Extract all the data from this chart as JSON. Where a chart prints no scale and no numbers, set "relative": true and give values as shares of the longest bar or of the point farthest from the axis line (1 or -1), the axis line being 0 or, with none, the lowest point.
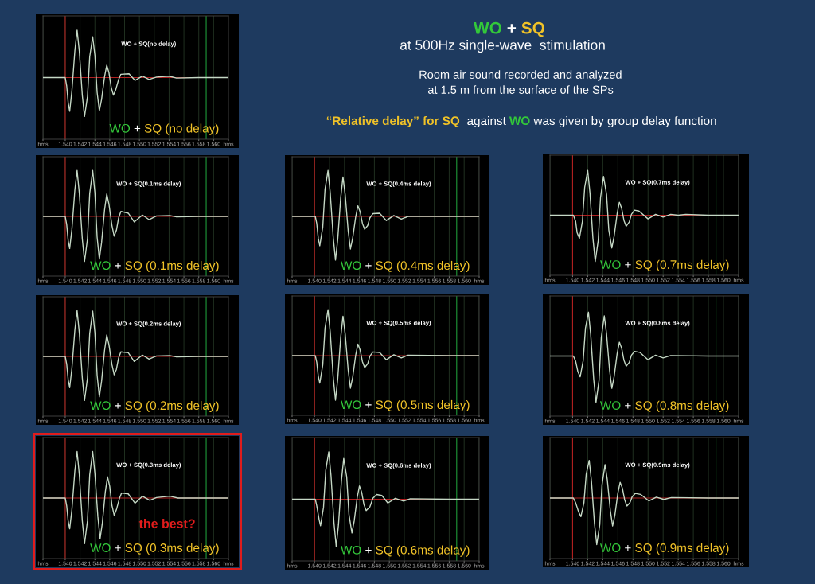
{
  "chart_data": [
    {
      "type": "line",
      "title": "WO + SQ(no delay)",
      "annotations": [
        "WO + SQ (no delay)"
      ],
      "relative": true,
      "grid": "x",
      "tick_labels": "x",
      "xlim": [
        1.537,
        1.562
      ],
      "xticks": [
        {
          "value": 1.537,
          "label": "hms"
        },
        {
          "value": 1.54,
          "label": "1.540"
        },
        {
          "value": 1.542,
          "label": "1.542"
        },
        {
          "value": 1.544,
          "label": "1.544"
        },
        {
          "value": 1.546,
          "label": "1.546"
        },
        {
          "value": 1.548,
          "label": "1.548"
        },
        {
          "value": 1.55,
          "label": "1.550"
        },
        {
          "value": 1.552,
          "label": "1.552"
        },
        {
          "value": 1.554,
          "label": "1.554"
        },
        {
          "value": 1.556,
          "label": "1.556"
        },
        {
          "value": 1.558,
          "label": "1.558"
        },
        {
          "value": 1.56,
          "label": "1.560"
        },
        {
          "value": 1.562,
          "label": "hms"
        }
      ],
      "ref_lines": [
        {
          "axis": "y",
          "value": 0,
          "color": "#b02020"
        },
        {
          "axis": "x",
          "value": 1.54,
          "color": "#b02020"
        },
        {
          "axis": "x",
          "value": 1.559,
          "color": "#1f9a3a"
        }
      ],
      "x": [
        1.537,
        1.54,
        1.5402,
        1.5404,
        1.5406,
        1.5409,
        1.5413,
        1.5416,
        1.5419,
        1.5423,
        1.5426,
        1.543,
        1.5433,
        1.5437,
        1.544,
        1.5443,
        1.5446,
        1.5449,
        1.5453,
        1.5456,
        1.5459,
        1.5462,
        1.5465,
        1.5468,
        1.5472,
        1.5475,
        1.5486,
        1.5494,
        1.5504,
        1.5513,
        1.5523,
        1.554,
        1.555,
        1.558,
        1.562
      ],
      "series": [
        {
          "color": "#c5d8c5",
          "values": [
            0,
            0,
            -0.18,
            -0.53,
            -0.71,
            -0.28,
            0.57,
            1.0,
            0.55,
            -0.37,
            -0.82,
            -0.4,
            0.44,
            0.86,
            0.47,
            -0.31,
            -0.7,
            -0.46,
            0.02,
            0.26,
            0.1,
            -0.21,
            -0.37,
            -0.26,
            -0.04,
            0.07,
            0.08,
            -0.06,
            0.03,
            -0.04,
            0.01,
            0.03,
            -0.01,
            0,
            0
          ]
        }
      ]
    },
    {
      "type": "other",
      "title": "WO + SQ",
      "subtitle": "at 500Hz single-wave  stimulation",
      "annotations": [
        "Room air sound recorded and analyzed",
        "at 1.5 m from the surface of the SPs",
        "“Relative delay” for SQ  against WO was given by group delay function"
      ]
    },
    {
      "type": "line",
      "title": "WO + SQ(0.1ms delay)",
      "annotations": [
        "WO + SQ (0.1ms delay)"
      ],
      "relative": true,
      "grid": "x",
      "tick_labels": "x",
      "xlim": [
        1.537,
        1.562
      ],
      "xticks": [
        {
          "value": 1.537,
          "label": "hms"
        },
        {
          "value": 1.54,
          "label": "1.540"
        },
        {
          "value": 1.542,
          "label": "1.542"
        },
        {
          "value": 1.544,
          "label": "1.544"
        },
        {
          "value": 1.546,
          "label": "1.546"
        },
        {
          "value": 1.548,
          "label": "1.548"
        },
        {
          "value": 1.55,
          "label": "1.550"
        },
        {
          "value": 1.552,
          "label": "1.552"
        },
        {
          "value": 1.554,
          "label": "1.554"
        },
        {
          "value": 1.556,
          "label": "1.556"
        },
        {
          "value": 1.558,
          "label": "1.558"
        },
        {
          "value": 1.56,
          "label": "1.560"
        },
        {
          "value": 1.562,
          "label": "hms"
        }
      ],
      "ref_lines": [
        {
          "axis": "y",
          "value": 0,
          "color": "#b02020"
        },
        {
          "axis": "x",
          "value": 1.54,
          "color": "#b02020"
        },
        {
          "axis": "x",
          "value": 1.559,
          "color": "#1f9a3a"
        }
      ],
      "x": [
        1.537,
        1.54,
        1.5402,
        1.5404,
        1.5406,
        1.5409,
        1.5413,
        1.5416,
        1.5419,
        1.5423,
        1.5426,
        1.543,
        1.5433,
        1.5437,
        1.544,
        1.5443,
        1.5446,
        1.5449,
        1.5453,
        1.5456,
        1.5459,
        1.5463,
        1.5466,
        1.5469,
        1.5472,
        1.5475,
        1.5485,
        1.5493,
        1.5504,
        1.5513,
        1.5523,
        1.5541,
        1.555,
        1.558,
        1.562
      ],
      "series": [
        {
          "color": "#c5d8c5",
          "values": [
            0,
            0,
            -0.18,
            -0.53,
            -0.7,
            -0.28,
            0.58,
            1.0,
            0.5,
            -0.49,
            -0.98,
            -0.49,
            0.5,
            1.0,
            0.52,
            -0.45,
            -0.93,
            -0.57,
            0.14,
            0.49,
            0.26,
            -0.2,
            -0.43,
            -0.3,
            -0.03,
            0.11,
            0.07,
            -0.12,
            0.03,
            -0.07,
            0.01,
            0.02,
            -0.01,
            0,
            0
          ]
        }
      ]
    },
    {
      "type": "line",
      "title": "WO + SQ(0.4ms delay)",
      "annotations": [
        "WO + SQ (0.4ms delay)"
      ],
      "relative": true,
      "grid": "x",
      "tick_labels": "x",
      "xlim": [
        1.537,
        1.562
      ],
      "xticks": [
        {
          "value": 1.537,
          "label": "hms"
        },
        {
          "value": 1.54,
          "label": "1.540"
        },
        {
          "value": 1.542,
          "label": "1.542"
        },
        {
          "value": 1.544,
          "label": "1.544"
        },
        {
          "value": 1.546,
          "label": "1.546"
        },
        {
          "value": 1.548,
          "label": "1.548"
        },
        {
          "value": 1.55,
          "label": "1.550"
        },
        {
          "value": 1.552,
          "label": "1.552"
        },
        {
          "value": 1.554,
          "label": "1.554"
        },
        {
          "value": 1.556,
          "label": "1.556"
        },
        {
          "value": 1.558,
          "label": "1.558"
        },
        {
          "value": 1.56,
          "label": "1.560"
        },
        {
          "value": 1.562,
          "label": "hms"
        }
      ],
      "ref_lines": [
        {
          "axis": "y",
          "value": 0,
          "color": "#b02020"
        },
        {
          "axis": "x",
          "value": 1.54,
          "color": "#b02020"
        },
        {
          "axis": "x",
          "value": 1.559,
          "color": "#1f9a3a"
        }
      ],
      "x": [
        1.537,
        1.5401,
        1.5403,
        1.5405,
        1.5407,
        1.5411,
        1.5414,
        1.5418,
        1.5421,
        1.5425,
        1.5428,
        1.5431,
        1.5435,
        1.5438,
        1.5441,
        1.5445,
        1.5448,
        1.5451,
        1.5455,
        1.5458,
        1.5461,
        1.5464,
        1.5467,
        1.5471,
        1.5474,
        1.5478,
        1.5487,
        1.5496,
        1.5506,
        1.5516,
        1.5525,
        1.558,
        1.562
      ],
      "series": [
        {
          "color": "#c5d8c5",
          "values": [
            0,
            0,
            -0.16,
            -0.48,
            -0.64,
            -0.23,
            0.59,
            1.0,
            0.51,
            -0.46,
            -0.95,
            -0.5,
            0.41,
            0.86,
            0.47,
            -0.32,
            -0.71,
            -0.47,
            -0.01,
            0.23,
            0.1,
            -0.15,
            -0.28,
            -0.2,
            -0.03,
            0.06,
            0.07,
            -0.09,
            0.02,
            -0.06,
            0,
            0,
            0
          ]
        }
      ]
    },
    {
      "type": "line",
      "title": "WO + SQ(0.7ms delay)",
      "annotations": [
        "WO + SQ (0.7ms delay)"
      ],
      "relative": true,
      "grid": "x",
      "tick_labels": "x",
      "xlim": [
        1.537,
        1.562
      ],
      "xticks": [
        {
          "value": 1.537,
          "label": "hms"
        },
        {
          "value": 1.54,
          "label": "1.540"
        },
        {
          "value": 1.542,
          "label": "1.542"
        },
        {
          "value": 1.544,
          "label": "1.544"
        },
        {
          "value": 1.546,
          "label": "1.546"
        },
        {
          "value": 1.548,
          "label": "1.548"
        },
        {
          "value": 1.55,
          "label": "1.550"
        },
        {
          "value": 1.552,
          "label": "1.552"
        },
        {
          "value": 1.554,
          "label": "1.554"
        },
        {
          "value": 1.556,
          "label": "1.556"
        },
        {
          "value": 1.558,
          "label": "1.558"
        },
        {
          "value": 1.56,
          "label": "1.560"
        },
        {
          "value": 1.562,
          "label": "hms"
        }
      ],
      "ref_lines": [
        {
          "axis": "y",
          "value": 0,
          "color": "#b02020"
        },
        {
          "axis": "x",
          "value": 1.54,
          "color": "#b02020"
        },
        {
          "axis": "x",
          "value": 1.559,
          "color": "#1f9a3a"
        }
      ],
      "x": [
        1.537,
        1.5401,
        1.5404,
        1.5406,
        1.5409,
        1.5413,
        1.5416,
        1.542,
        1.5423,
        1.5427,
        1.543,
        1.5434,
        1.5437,
        1.5441,
        1.5445,
        1.5448,
        1.5452,
        1.5455,
        1.5459,
        1.5462,
        1.5465,
        1.5468,
        1.5471,
        1.5475,
        1.5478,
        1.5482,
        1.5488,
        1.55,
        1.551,
        1.552,
        1.553,
        1.554,
        1.555,
        1.558,
        1.562
      ],
      "series": [
        {
          "color": "#c5d8c5",
          "values": [
            0,
            0,
            -0.13,
            -0.38,
            -0.5,
            -0.13,
            0.6,
            0.97,
            0.48,
            -0.51,
            -1.0,
            -0.54,
            0.38,
            0.84,
            0.45,
            -0.32,
            -0.71,
            -0.46,
            0.03,
            0.28,
            0.15,
            -0.11,
            -0.24,
            -0.15,
            0.02,
            0.11,
            0.09,
            -0.08,
            0.02,
            -0.04,
            0.02,
            0,
            0.02,
            0,
            0
          ]
        }
      ]
    },
    {
      "type": "line",
      "title": "WO + SQ(0.2ms delay)",
      "annotations": [
        "WO + SQ (0.2ms delay)"
      ],
      "relative": true,
      "grid": "x",
      "tick_labels": "x",
      "xlim": [
        1.537,
        1.562
      ],
      "xticks": [
        {
          "value": 1.537,
          "label": "hms"
        },
        {
          "value": 1.54,
          "label": "1.540"
        },
        {
          "value": 1.542,
          "label": "1.542"
        },
        {
          "value": 1.544,
          "label": "1.544"
        },
        {
          "value": 1.546,
          "label": "1.546"
        },
        {
          "value": 1.548,
          "label": "1.548"
        },
        {
          "value": 1.55,
          "label": "1.550"
        },
        {
          "value": 1.552,
          "label": "1.552"
        },
        {
          "value": 1.554,
          "label": "1.554"
        },
        {
          "value": 1.556,
          "label": "1.556"
        },
        {
          "value": 1.558,
          "label": "1.558"
        },
        {
          "value": 1.56,
          "label": "1.560"
        },
        {
          "value": 1.562,
          "label": "hms"
        }
      ],
      "ref_lines": [
        {
          "axis": "y",
          "value": 0,
          "color": "#b02020"
        },
        {
          "axis": "x",
          "value": 1.54,
          "color": "#b02020"
        },
        {
          "axis": "x",
          "value": 1.559,
          "color": "#1f9a3a"
        }
      ],
      "x": [
        1.537,
        1.54,
        1.5402,
        1.5404,
        1.5406,
        1.5409,
        1.5413,
        1.5416,
        1.5419,
        1.5423,
        1.5426,
        1.543,
        1.5433,
        1.5437,
        1.544,
        1.5443,
        1.5446,
        1.5449,
        1.5453,
        1.5456,
        1.5459,
        1.5463,
        1.5466,
        1.5469,
        1.5472,
        1.5475,
        1.5485,
        1.5493,
        1.5504,
        1.5513,
        1.5523,
        1.5541,
        1.555,
        1.558,
        1.562
      ],
      "series": [
        {
          "color": "#c5d8c5",
          "values": [
            0,
            0,
            -0.17,
            -0.51,
            -0.68,
            -0.26,
            0.58,
            1.0,
            0.51,
            -0.47,
            -0.96,
            -0.47,
            0.5,
            0.99,
            0.52,
            -0.41,
            -0.88,
            -0.54,
            0.13,
            0.47,
            0.25,
            -0.18,
            -0.4,
            -0.28,
            -0.03,
            0.1,
            0.08,
            -0.11,
            0.03,
            -0.06,
            0.01,
            0.02,
            -0.01,
            0,
            0
          ]
        }
      ]
    },
    {
      "type": "line",
      "title": "WO + SQ(0.5ms delay)",
      "annotations": [
        "WO + SQ (0.5ms delay)"
      ],
      "relative": true,
      "grid": "x",
      "tick_labels": "x",
      "xlim": [
        1.537,
        1.562
      ],
      "xticks": [
        {
          "value": 1.537,
          "label": "hms"
        },
        {
          "value": 1.54,
          "label": "1.540"
        },
        {
          "value": 1.542,
          "label": "1.542"
        },
        {
          "value": 1.544,
          "label": "1.544"
        },
        {
          "value": 1.546,
          "label": "1.546"
        },
        {
          "value": 1.548,
          "label": "1.548"
        },
        {
          "value": 1.55,
          "label": "1.550"
        },
        {
          "value": 1.552,
          "label": "1.552"
        },
        {
          "value": 1.554,
          "label": "1.554"
        },
        {
          "value": 1.556,
          "label": "1.556"
        },
        {
          "value": 1.558,
          "label": "1.558"
        },
        {
          "value": 1.56,
          "label": "1.560"
        },
        {
          "value": 1.562,
          "label": "hms"
        }
      ],
      "ref_lines": [
        {
          "axis": "y",
          "value": 0,
          "color": "#b02020"
        },
        {
          "axis": "x",
          "value": 1.54,
          "color": "#b02020"
        },
        {
          "axis": "x",
          "value": 1.559,
          "color": "#1f9a3a"
        }
      ],
      "x": [
        1.537,
        1.5401,
        1.5403,
        1.5405,
        1.5407,
        1.5411,
        1.5414,
        1.5418,
        1.5421,
        1.5425,
        1.5428,
        1.5431,
        1.5435,
        1.5438,
        1.5441,
        1.5445,
        1.5448,
        1.5451,
        1.5455,
        1.5458,
        1.5461,
        1.5464,
        1.5467,
        1.5471,
        1.5474,
        1.5478,
        1.5487,
        1.5496,
        1.5506,
        1.5516,
        1.5525,
        1.558,
        1.562
      ],
      "series": [
        {
          "color": "#c5d8c5",
          "values": [
            0,
            0,
            -0.15,
            -0.45,
            -0.6,
            -0.2,
            0.6,
            1.0,
            0.51,
            -0.48,
            -0.97,
            -0.51,
            0.4,
            0.86,
            0.47,
            -0.32,
            -0.71,
            -0.47,
            0.01,
            0.25,
            0.12,
            -0.13,
            -0.26,
            -0.18,
            -0.01,
            0.08,
            0.07,
            -0.09,
            0.02,
            -0.05,
            0.01,
            0,
            0
          ]
        }
      ]
    },
    {
      "type": "line",
      "title": "WO + SQ(0.8ms delay)",
      "annotations": [
        "WO + SQ (0.8ms delay)"
      ],
      "relative": true,
      "grid": "x",
      "tick_labels": "x",
      "xlim": [
        1.537,
        1.562
      ],
      "xticks": [
        {
          "value": 1.537,
          "label": "hms"
        },
        {
          "value": 1.54,
          "label": "1.540"
        },
        {
          "value": 1.542,
          "label": "1.542"
        },
        {
          "value": 1.544,
          "label": "1.544"
        },
        {
          "value": 1.546,
          "label": "1.546"
        },
        {
          "value": 1.548,
          "label": "1.548"
        },
        {
          "value": 1.55,
          "label": "1.550"
        },
        {
          "value": 1.552,
          "label": "1.552"
        },
        {
          "value": 1.554,
          "label": "1.554"
        },
        {
          "value": 1.556,
          "label": "1.556"
        },
        {
          "value": 1.558,
          "label": "1.558"
        },
        {
          "value": 1.56,
          "label": "1.560"
        },
        {
          "value": 1.562,
          "label": "hms"
        }
      ],
      "ref_lines": [
        {
          "axis": "y",
          "value": 0,
          "color": "#b02020"
        },
        {
          "axis": "x",
          "value": 1.54,
          "color": "#b02020"
        },
        {
          "axis": "x",
          "value": 1.559,
          "color": "#1f9a3a"
        }
      ],
      "x": [
        1.537,
        1.5401,
        1.5404,
        1.5407,
        1.541,
        1.5414,
        1.5417,
        1.5421,
        1.5424,
        1.5428,
        1.5431,
        1.5435,
        1.5438,
        1.5442,
        1.5445,
        1.5449,
        1.5452,
        1.5455,
        1.5459,
        1.5462,
        1.5465,
        1.5468,
        1.5471,
        1.5475,
        1.5478,
        1.5482,
        1.5489,
        1.55,
        1.551,
        1.552,
        1.553,
        1.558,
        1.562
      ],
      "series": [
        {
          "color": "#c5d8c5",
          "values": [
            0,
            0,
            -0.11,
            -0.34,
            -0.45,
            -0.1,
            0.6,
            0.95,
            0.46,
            -0.51,
            -1.0,
            -0.53,
            0.4,
            0.87,
            0.48,
            -0.31,
            -0.7,
            -0.45,
            0.05,
            0.3,
            0.17,
            -0.09,
            -0.22,
            -0.14,
            0.02,
            0.1,
            0.08,
            -0.08,
            0.02,
            -0.04,
            0.01,
            0,
            0
          ]
        }
      ]
    },
    {
      "type": "line",
      "title": "WO + SQ(0.3ms delay)",
      "annotations": [
        "WO + SQ (0.3ms delay)",
        "the best?"
      ],
      "relative": true,
      "grid": "x",
      "tick_labels": "x",
      "xlim": [
        1.537,
        1.562
      ],
      "xticks": [
        {
          "value": 1.537,
          "label": "hms"
        },
        {
          "value": 1.54,
          "label": "1.540"
        },
        {
          "value": 1.542,
          "label": "1.542"
        },
        {
          "value": 1.544,
          "label": "1.544"
        },
        {
          "value": 1.546,
          "label": "1.546"
        },
        {
          "value": 1.548,
          "label": "1.548"
        },
        {
          "value": 1.55,
          "label": "1.550"
        },
        {
          "value": 1.552,
          "label": "1.552"
        },
        {
          "value": 1.554,
          "label": "1.554"
        },
        {
          "value": 1.556,
          "label": "1.556"
        },
        {
          "value": 1.558,
          "label": "1.558"
        },
        {
          "value": 1.56,
          "label": "1.560"
        },
        {
          "value": 1.562,
          "label": "hms"
        }
      ],
      "ref_lines": [
        {
          "axis": "y",
          "value": 0,
          "color": "#b02020"
        },
        {
          "axis": "x",
          "value": 1.54,
          "color": "#b02020"
        },
        {
          "axis": "x",
          "value": 1.559,
          "color": "#1f9a3a"
        }
      ],
      "x": [
        1.537,
        1.54,
        1.5402,
        1.5404,
        1.5406,
        1.5409,
        1.5413,
        1.5416,
        1.5419,
        1.5423,
        1.5426,
        1.543,
        1.5433,
        1.5437,
        1.544,
        1.5444,
        1.5447,
        1.545,
        1.5454,
        1.5457,
        1.546,
        1.5463,
        1.5466,
        1.5469,
        1.5473,
        1.5476,
        1.5485,
        1.5494,
        1.5504,
        1.5514,
        1.5523,
        1.5541,
        1.5552,
        1.558,
        1.562
      ],
      "series": [
        {
          "color": "#c5d8c5",
          "values": [
            0,
            0,
            -0.17,
            -0.5,
            -0.66,
            -0.25,
            0.59,
            1.0,
            0.5,
            -0.49,
            -0.98,
            -0.49,
            0.5,
            1.0,
            0.53,
            -0.4,
            -0.87,
            -0.54,
            0.13,
            0.46,
            0.25,
            -0.16,
            -0.37,
            -0.25,
            -0.01,
            0.11,
            0.09,
            -0.11,
            0.04,
            -0.05,
            0.01,
            0.04,
            0,
            0,
            0
          ]
        }
      ]
    },
    {
      "type": "line",
      "title": "WO + SQ(0.6ms delay)",
      "annotations": [
        "WO + SQ (0.6ms delay)"
      ],
      "relative": true,
      "grid": "x",
      "tick_labels": "x",
      "xlim": [
        1.537,
        1.562
      ],
      "xticks": [
        {
          "value": 1.537,
          "label": "hms"
        },
        {
          "value": 1.54,
          "label": "1.540"
        },
        {
          "value": 1.542,
          "label": "1.542"
        },
        {
          "value": 1.544,
          "label": "1.544"
        },
        {
          "value": 1.546,
          "label": "1.546"
        },
        {
          "value": 1.548,
          "label": "1.548"
        },
        {
          "value": 1.55,
          "label": "1.550"
        },
        {
          "value": 1.552,
          "label": "1.552"
        },
        {
          "value": 1.554,
          "label": "1.554"
        },
        {
          "value": 1.556,
          "label": "1.556"
        },
        {
          "value": 1.558,
          "label": "1.558"
        },
        {
          "value": 1.56,
          "label": "1.560"
        },
        {
          "value": 1.562,
          "label": "hms"
        }
      ],
      "ref_lines": [
        {
          "axis": "y",
          "value": 0,
          "color": "#b02020"
        },
        {
          "axis": "x",
          "value": 1.54,
          "color": "#b02020"
        },
        {
          "axis": "x",
          "value": 1.559,
          "color": "#1f9a3a"
        }
      ],
      "x": [
        1.537,
        1.5401,
        1.5403,
        1.5406,
        1.5408,
        1.5412,
        1.5415,
        1.5419,
        1.5422,
        1.5426,
        1.5429,
        1.5432,
        1.5436,
        1.5439,
        1.5443,
        1.5446,
        1.545,
        1.5453,
        1.5457,
        1.546,
        1.5463,
        1.5466,
        1.5469,
        1.5474,
        1.5478,
        1.5483,
        1.549,
        1.5498,
        1.5508,
        1.5519,
        1.5528,
        1.558,
        1.562
      ],
      "series": [
        {
          "color": "#c5d8c5",
          "values": [
            0,
            0,
            -0.14,
            -0.42,
            -0.56,
            -0.17,
            0.61,
            1.0,
            0.5,
            -0.5,
            -1.0,
            -0.54,
            0.4,
            0.86,
            0.47,
            -0.32,
            -0.71,
            -0.46,
            0.03,
            0.28,
            0.15,
            -0.11,
            -0.24,
            -0.16,
            0.02,
            0.1,
            0.08,
            -0.08,
            0.02,
            -0.04,
            0.01,
            0,
            0
          ]
        }
      ]
    },
    {
      "type": "line",
      "title": "WO + SQ(0.9ms delay)",
      "annotations": [
        "WO + SQ (0.9ms delay)"
      ],
      "relative": true,
      "grid": "x",
      "tick_labels": "x",
      "xlim": [
        1.537,
        1.562
      ],
      "xticks": [
        {
          "value": 1.537,
          "label": "hms"
        },
        {
          "value": 1.54,
          "label": "1.540"
        },
        {
          "value": 1.542,
          "label": "1.542"
        },
        {
          "value": 1.544,
          "label": "1.544"
        },
        {
          "value": 1.546,
          "label": "1.546"
        },
        {
          "value": 1.548,
          "label": "1.548"
        },
        {
          "value": 1.55,
          "label": "1.550"
        },
        {
          "value": 1.552,
          "label": "1.552"
        },
        {
          "value": 1.554,
          "label": "1.554"
        },
        {
          "value": 1.556,
          "label": "1.556"
        },
        {
          "value": 1.558,
          "label": "1.558"
        },
        {
          "value": 1.56,
          "label": "1.560"
        },
        {
          "value": 1.562,
          "label": "hms"
        }
      ],
      "ref_lines": [
        {
          "axis": "y",
          "value": 0,
          "color": "#b02020"
        },
        {
          "axis": "x",
          "value": 1.54,
          "color": "#b02020"
        },
        {
          "axis": "x",
          "value": 1.559,
          "color": "#1f9a3a"
        }
      ],
      "x": [
        1.537,
        1.5401,
        1.5404,
        1.5408,
        1.5411,
        1.5415,
        1.5418,
        1.5422,
        1.5425,
        1.5429,
        1.5432,
        1.5436,
        1.5439,
        1.5443,
        1.5446,
        1.545,
        1.5453,
        1.5456,
        1.546,
        1.5463,
        1.5466,
        1.5469,
        1.5472,
        1.5476,
        1.5479,
        1.5483,
        1.549,
        1.5501,
        1.5511,
        1.5521,
        1.5531,
        1.558,
        1.562
      ],
      "series": [
        {
          "color": "#c5d8c5",
          "values": [
            0,
            0,
            -0.1,
            -0.3,
            -0.4,
            -0.1,
            0.51,
            0.81,
            0.36,
            -0.55,
            -1.0,
            -0.57,
            0.29,
            0.72,
            0.39,
            -0.27,
            -0.6,
            -0.37,
            0.11,
            0.34,
            0.21,
            -0.04,
            -0.17,
            -0.1,
            0.03,
            0.1,
            0.08,
            -0.06,
            0.02,
            -0.03,
            0.01,
            0,
            0
          ]
        }
      ]
    }
  ]
}
